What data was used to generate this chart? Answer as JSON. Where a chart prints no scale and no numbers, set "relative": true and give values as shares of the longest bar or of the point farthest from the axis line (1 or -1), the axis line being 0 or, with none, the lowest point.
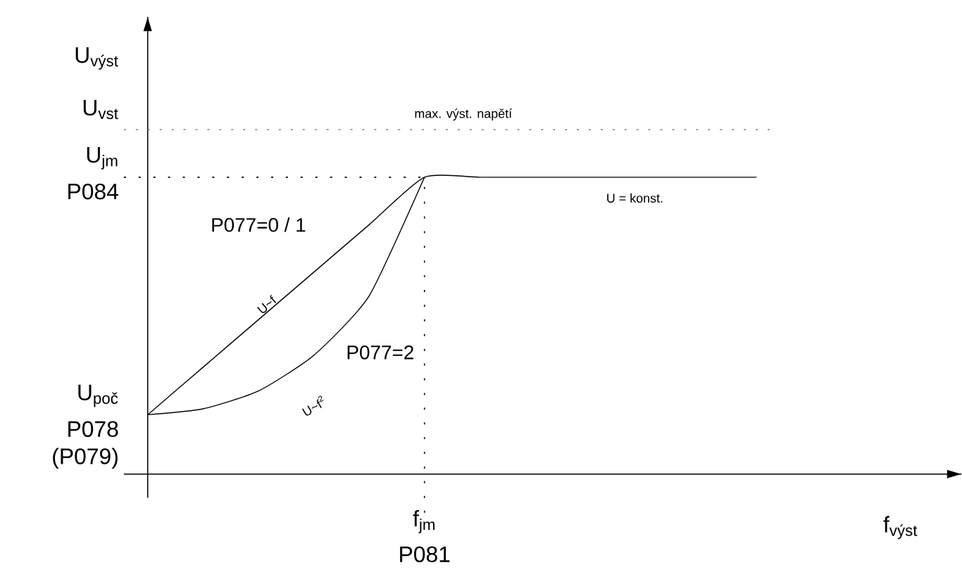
{
  "chart_data": {
    "type": "line",
    "relative": true,
    "categories": [
      null,
      null,
      null,
      null,
      null,
      null,
      null,
      null,
      null,
      null,
      null,
      null
    ],
    "xlabel": "f$_{výst}$",
    "ylabel": "U$_{výst}$",
    "marker": "none",
    "line_style": "solid",
    "series": [
      {
        "color": "#000000",
        "values": [
          0.2,
          0.36,
          0.52,
          0.68,
          0.84,
          1.0,
          1.0,
          1.0,
          1.0,
          1.0,
          1.0,
          1.0
        ]
      },
      {
        "color": "#000000",
        "values": [
          0.2,
          0.22,
          0.28,
          0.4,
          0.6,
          1.0,
          null,
          null,
          null,
          null,
          null,
          null
        ]
      }
    ],
    "ref_lines": [
      {
        "axis": "y",
        "value": 1.16,
        "label": "max. výst. napětí",
        "color": "#808080",
        "line_style": "dotted"
      }
    ],
    "annotations": [
      "U$_{vst}$",
      "U$_{jm}$",
      "P084",
      "U$_{poč}$",
      "P078",
      "(P079)",
      "P077=0 / 1",
      "U~f",
      "P077=2",
      "U~f$^{2}$",
      "U = konst.",
      "f$_{jm}$",
      "P081"
    ]
  }
}
